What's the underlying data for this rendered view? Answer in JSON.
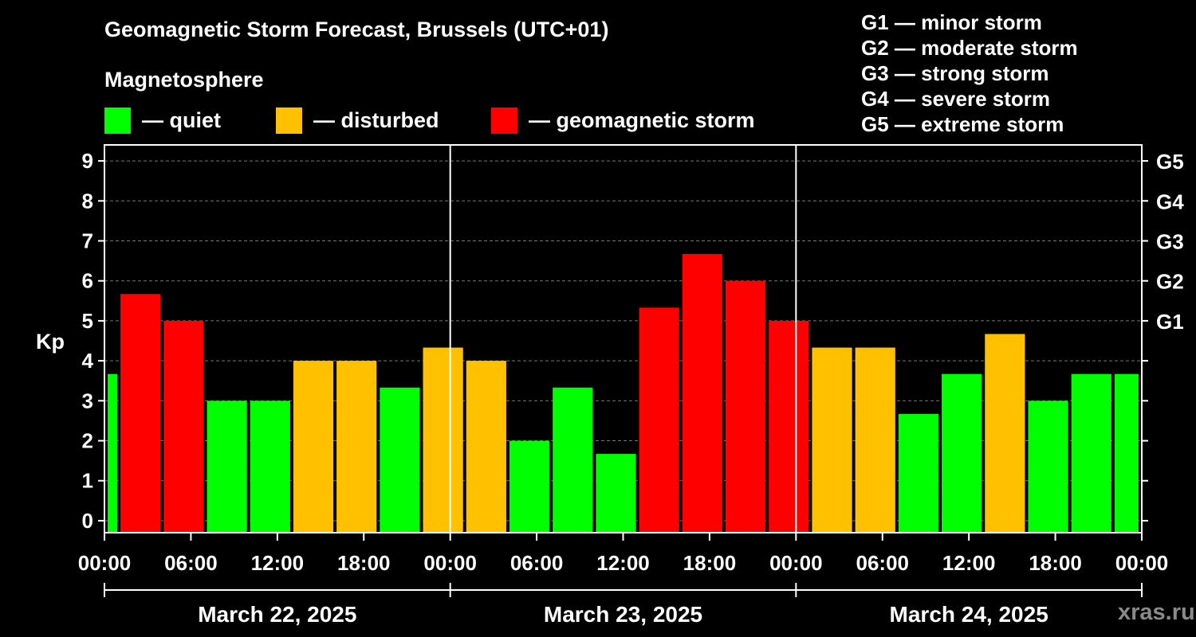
{
  "header": {
    "title": "Geomagnetic Storm Forecast, Brussels (UTC+01)",
    "subtitle": "Magnetosphere"
  },
  "legend": {
    "items": [
      {
        "label": "— quiet",
        "color": "#00FF00"
      },
      {
        "label": "— disturbed",
        "color": "#FFC000"
      },
      {
        "label": "— geomagnetic storm",
        "color": "#FF0000"
      }
    ]
  },
  "storm_scale": [
    "G1 — minor storm",
    "G2 — moderate storm",
    "G3 — strong storm",
    "G4 — severe storm",
    "G5 — extreme storm"
  ],
  "watermark": "xras.ru",
  "chart_data": {
    "type": "bar",
    "title": "Geomagnetic Storm Forecast, Brussels (UTC+01)",
    "ylabel": "Kp",
    "ylim": [
      -0.3,
      9.4
    ],
    "yticks": [
      "0",
      "1",
      "2",
      "3",
      "4",
      "5",
      "6",
      "7",
      "8",
      "9"
    ],
    "right_axis": [
      {
        "kp": 5,
        "label": "G1"
      },
      {
        "kp": 6,
        "label": "G2"
      },
      {
        "kp": 7,
        "label": "G3"
      },
      {
        "kp": 8,
        "label": "G4"
      },
      {
        "kp": 9,
        "label": "G5"
      }
    ],
    "x_hours_range": [
      0,
      72
    ],
    "xtick_labels": [
      "00:00",
      "06:00",
      "12:00",
      "18:00",
      "00:00",
      "06:00",
      "12:00",
      "18:00",
      "00:00",
      "06:00",
      "12:00",
      "18:00",
      "00:00"
    ],
    "dates": [
      "March 22, 2025",
      "March 23, 2025",
      "March 24, 2025"
    ],
    "bars": [
      {
        "start": 0,
        "end": 1,
        "kp": 3.67,
        "level": "quiet"
      },
      {
        "start": 1,
        "end": 4,
        "kp": 5.67,
        "level": "storm"
      },
      {
        "start": 4,
        "end": 7,
        "kp": 5.0,
        "level": "storm"
      },
      {
        "start": 7,
        "end": 10,
        "kp": 3.0,
        "level": "quiet"
      },
      {
        "start": 10,
        "end": 13,
        "kp": 3.0,
        "level": "quiet"
      },
      {
        "start": 13,
        "end": 16,
        "kp": 4.0,
        "level": "disturbed"
      },
      {
        "start": 16,
        "end": 19,
        "kp": 4.0,
        "level": "disturbed"
      },
      {
        "start": 19,
        "end": 22,
        "kp": 3.33,
        "level": "quiet"
      },
      {
        "start": 22,
        "end": 25,
        "kp": 4.33,
        "level": "disturbed"
      },
      {
        "start": 25,
        "end": 28,
        "kp": 4.0,
        "level": "disturbed"
      },
      {
        "start": 28,
        "end": 31,
        "kp": 2.0,
        "level": "quiet"
      },
      {
        "start": 31,
        "end": 34,
        "kp": 3.33,
        "level": "quiet"
      },
      {
        "start": 34,
        "end": 37,
        "kp": 1.67,
        "level": "quiet"
      },
      {
        "start": 37,
        "end": 40,
        "kp": 5.33,
        "level": "storm"
      },
      {
        "start": 40,
        "end": 43,
        "kp": 6.67,
        "level": "storm"
      },
      {
        "start": 43,
        "end": 46,
        "kp": 6.0,
        "level": "storm"
      },
      {
        "start": 46,
        "end": 49,
        "kp": 5.0,
        "level": "storm"
      },
      {
        "start": 49,
        "end": 52,
        "kp": 4.33,
        "level": "disturbed"
      },
      {
        "start": 52,
        "end": 55,
        "kp": 4.33,
        "level": "disturbed"
      },
      {
        "start": 55,
        "end": 58,
        "kp": 2.67,
        "level": "quiet"
      },
      {
        "start": 58,
        "end": 61,
        "kp": 3.67,
        "level": "quiet"
      },
      {
        "start": 61,
        "end": 64,
        "kp": 4.67,
        "level": "disturbed"
      },
      {
        "start": 64,
        "end": 67,
        "kp": 3.0,
        "level": "quiet"
      },
      {
        "start": 67,
        "end": 70,
        "kp": 3.67,
        "level": "quiet"
      },
      {
        "start": 70,
        "end": 72,
        "kp": 3.67,
        "level": "quiet"
      }
    ],
    "colors": {
      "quiet": "#00FF00",
      "disturbed": "#FFC000",
      "storm": "#FF0000"
    }
  }
}
